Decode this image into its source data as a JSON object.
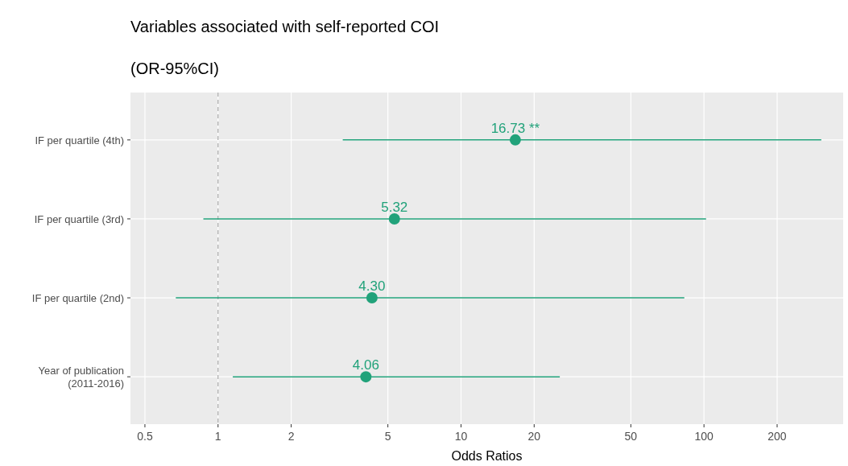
{
  "chart_data": {
    "type": "scatter",
    "orientation": "horizontal",
    "title": "Variables associated with self-reported COI",
    "subtitle": "(OR-95%CI)",
    "xlabel": "Odds Ratios",
    "categories": [
      "IF per quartile (4th)",
      "IF per quartile (3rd)",
      "IF per quartile (2nd)",
      "Year of publication\n(2011-2016)"
    ],
    "series": [
      {
        "color": "#21a27a",
        "values": [
          16.73,
          5.32,
          4.3,
          4.06
        ],
        "errors": [
          [
            3.26,
            304
          ],
          [
            0.87,
            102
          ],
          [
            0.67,
            83
          ],
          [
            1.15,
            25.5
          ]
        ],
        "value_labels": [
          "16.73 **",
          "5.32",
          "4.30",
          "4.06"
        ]
      }
    ],
    "log": "x",
    "xlim": [
      0.436,
      374
    ],
    "xticks": [
      0.5,
      1,
      2,
      5,
      10,
      20,
      50,
      100,
      200
    ],
    "ref_lines": [
      {
        "axis": "x",
        "value": 1,
        "color": "#aaaaaa",
        "line_style": "dashed"
      }
    ],
    "grid": true,
    "marker": "circle"
  }
}
